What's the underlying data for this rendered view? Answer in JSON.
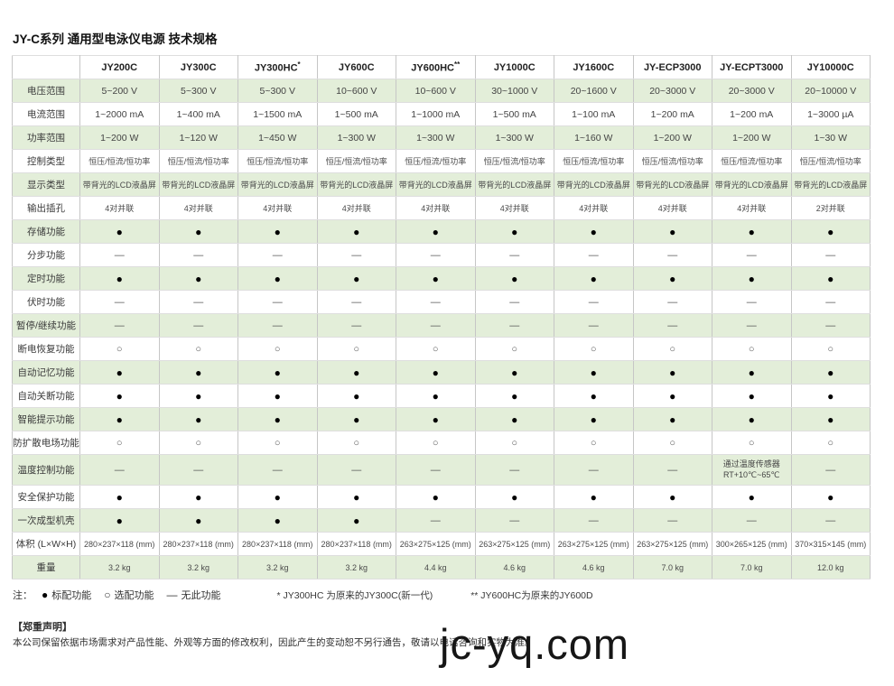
{
  "page_title": "JY-C系列 通用型电泳仪电源 技术规格",
  "colors": {
    "row_green": "#e3eed9",
    "border": "#c6c6c6"
  },
  "table": {
    "models": [
      {
        "name": "JY200C",
        "sup": ""
      },
      {
        "name": "JY300C",
        "sup": ""
      },
      {
        "name": "JY300HC",
        "sup": "*"
      },
      {
        "name": "JY600C",
        "sup": ""
      },
      {
        "name": "JY600HC",
        "sup": "**"
      },
      {
        "name": "JY1000C",
        "sup": ""
      },
      {
        "name": "JY1600C",
        "sup": ""
      },
      {
        "name": "JY-ECP3000",
        "sup": ""
      },
      {
        "name": "JY-ECPT3000",
        "sup": ""
      },
      {
        "name": "JY10000C",
        "sup": ""
      }
    ],
    "rows": [
      {
        "label": "电压范围",
        "values": [
          "5~200 V",
          "5~300 V",
          "5~300 V",
          "10~600 V",
          "10~600 V",
          "30~1000 V",
          "20~1600 V",
          "20~3000 V",
          "20~3000 V",
          "20~10000 V"
        ]
      },
      {
        "label": "电流范围",
        "values": [
          "1~2000 mA",
          "1~400 mA",
          "1~1500 mA",
          "1~500 mA",
          "1~1000 mA",
          "1~500 mA",
          "1~100 mA",
          "1~200 mA",
          "1~200 mA",
          "1~3000 µA"
        ]
      },
      {
        "label": "功率范围",
        "values": [
          "1~200 W",
          "1~120 W",
          "1~450 W",
          "1~300 W",
          "1~300 W",
          "1~300 W",
          "1~160 W",
          "1~200 W",
          "1~200 W",
          "1~30 W"
        ]
      },
      {
        "label": "控制类型",
        "small": true,
        "values": [
          "恒压/恒流/恒功率",
          "恒压/恒流/恒功率",
          "恒压/恒流/恒功率",
          "恒压/恒流/恒功率",
          "恒压/恒流/恒功率",
          "恒压/恒流/恒功率",
          "恒压/恒流/恒功率",
          "恒压/恒流/恒功率",
          "恒压/恒流/恒功率",
          "恒压/恒流/恒功率"
        ]
      },
      {
        "label": "显示类型",
        "small": true,
        "values": [
          "带背光的LCD液晶屏",
          "带背光的LCD液晶屏",
          "带背光的LCD液晶屏",
          "带背光的LCD液晶屏",
          "带背光的LCD液晶屏",
          "带背光的LCD液晶屏",
          "带背光的LCD液晶屏",
          "带背光的LCD液晶屏",
          "带背光的LCD液晶屏",
          "带背光的LCD液晶屏"
        ]
      },
      {
        "label": "输出插孔",
        "small": true,
        "values": [
          "4对并联",
          "4对并联",
          "4对并联",
          "4对并联",
          "4对并联",
          "4对并联",
          "4对并联",
          "4对并联",
          "4对并联",
          "2对并联"
        ]
      },
      {
        "label": "存储功能",
        "values": [
          "●",
          "●",
          "●",
          "●",
          "●",
          "●",
          "●",
          "●",
          "●",
          "●"
        ]
      },
      {
        "label": "分步功能",
        "values": [
          "—",
          "—",
          "—",
          "—",
          "—",
          "—",
          "—",
          "—",
          "—",
          "—"
        ]
      },
      {
        "label": "定时功能",
        "values": [
          "●",
          "●",
          "●",
          "●",
          "●",
          "●",
          "●",
          "●",
          "●",
          "●"
        ]
      },
      {
        "label": "伏时功能",
        "values": [
          "—",
          "—",
          "—",
          "—",
          "—",
          "—",
          "—",
          "—",
          "—",
          "—"
        ]
      },
      {
        "label": "暂停/继续功能",
        "values": [
          "—",
          "—",
          "—",
          "—",
          "—",
          "—",
          "—",
          "—",
          "—",
          "—"
        ]
      },
      {
        "label": "断电恢复功能",
        "values": [
          "○",
          "○",
          "○",
          "○",
          "○",
          "○",
          "○",
          "○",
          "○",
          "○"
        ]
      },
      {
        "label": "自动记忆功能",
        "values": [
          "●",
          "●",
          "●",
          "●",
          "●",
          "●",
          "●",
          "●",
          "●",
          "●"
        ]
      },
      {
        "label": "自动关断功能",
        "values": [
          "●",
          "●",
          "●",
          "●",
          "●",
          "●",
          "●",
          "●",
          "●",
          "●"
        ]
      },
      {
        "label": "智能提示功能",
        "values": [
          "●",
          "●",
          "●",
          "●",
          "●",
          "●",
          "●",
          "●",
          "●",
          "●"
        ]
      },
      {
        "label": "防扩散电场功能",
        "values": [
          "○",
          "○",
          "○",
          "○",
          "○",
          "○",
          "○",
          "○",
          "○",
          "○"
        ]
      },
      {
        "label": "温度控制功能",
        "tall": true,
        "values": [
          "—",
          "—",
          "—",
          "—",
          "—",
          "—",
          "—",
          "—",
          "通过温度传感器\nRT+10℃~65℃",
          "—"
        ]
      },
      {
        "label": "安全保护功能",
        "values": [
          "●",
          "●",
          "●",
          "●",
          "●",
          "●",
          "●",
          "●",
          "●",
          "●"
        ]
      },
      {
        "label": "一次成型机壳",
        "values": [
          "●",
          "●",
          "●",
          "●",
          "—",
          "—",
          "—",
          "—",
          "—",
          "—"
        ]
      },
      {
        "label": "体积 (L×W×H)",
        "small": true,
        "values": [
          "280×237×118 (mm)",
          "280×237×118 (mm)",
          "280×237×118 (mm)",
          "280×237×118 (mm)",
          "263×275×125 (mm)",
          "263×275×125 (mm)",
          "263×275×125 (mm)",
          "263×275×125 (mm)",
          "300×265×125 (mm)",
          "370×315×145 (mm)"
        ]
      },
      {
        "label": "重量",
        "small": true,
        "values": [
          "3.2 kg",
          "3.2 kg",
          "3.2 kg",
          "3.2 kg",
          "4.4 kg",
          "4.6 kg",
          "4.6 kg",
          "7.0 kg",
          "7.0 kg",
          "12.0 kg"
        ]
      }
    ]
  },
  "legend": {
    "prefix": "注：",
    "items": [
      {
        "symbol": "●",
        "label": "标配功能"
      },
      {
        "symbol": "○",
        "label": "选配功能"
      },
      {
        "symbol": "—",
        "label": "无此功能"
      }
    ],
    "footnote_1": "* JY300HC 为原来的JY300C(新一代)",
    "footnote_2": "** JY600HC为原来的JY600D"
  },
  "disclaimer": {
    "heading": "【郑重声明】",
    "body": "本公司保留依据市场需求对产品性能、外观等方面的修改权利，因此产生的变动恕不另行通告，敬请以电话咨询和实物为准。"
  },
  "watermark": "jc-yq.com"
}
